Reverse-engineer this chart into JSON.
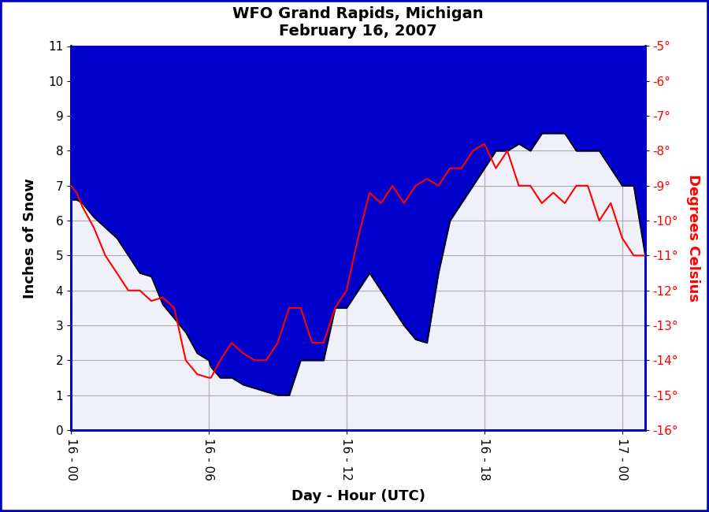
{
  "title_line1": "WFO Grand Rapids, Michigan",
  "title_line2": "February 16, 2007",
  "xlabel": "Day - Hour (UTC)",
  "ylabel_left": "Inches of Snow",
  "ylabel_right": "Degrees Celsius",
  "border_color": "#0000cc",
  "snow_fill_color": "#0000cc",
  "snow_line_color": "#000000",
  "temp_line_color": "#ff0000",
  "ylim_left": [
    0.0,
    11.0
  ],
  "ylim_right": [
    -16.0,
    -5.0
  ],
  "xlim": [
    0,
    25
  ],
  "xtick_positions": [
    0,
    6,
    12,
    18,
    24
  ],
  "xtick_labels": [
    "16 - 00",
    "16 - 06",
    "16 - 12",
    "16 - 18",
    "17 - 00"
  ],
  "ytick_left": [
    0.0,
    1.0,
    2.0,
    3.0,
    4.0,
    5.0,
    6.0,
    7.0,
    8.0,
    9.0,
    10.0,
    11.0
  ],
  "ytick_right": [
    -5,
    -6,
    -7,
    -8,
    -9,
    -10,
    -11,
    -12,
    -13,
    -14,
    -15,
    -16
  ],
  "snow_x": [
    0,
    0.25,
    0.5,
    1.0,
    1.5,
    2.0,
    2.5,
    3.0,
    3.5,
    4.0,
    4.5,
    5.0,
    5.5,
    6.0,
    6.1,
    6.5,
    7.0,
    7.5,
    8.0,
    8.5,
    9.0,
    9.5,
    10.0,
    10.5,
    11.0,
    11.5,
    12.0,
    12.5,
    13.0,
    13.5,
    14.0,
    14.5,
    15.0,
    15.5,
    16.0,
    16.5,
    17.0,
    17.5,
    18.0,
    18.5,
    19.0,
    19.5,
    20.0,
    20.5,
    21.0,
    21.5,
    22.0,
    22.5,
    23.0,
    23.5,
    24.0,
    24.5,
    25.0
  ],
  "snow_y": [
    6.6,
    6.6,
    6.5,
    6.1,
    5.8,
    5.5,
    5.0,
    4.5,
    4.4,
    3.6,
    3.2,
    2.8,
    2.2,
    2.0,
    1.8,
    1.5,
    1.5,
    1.3,
    1.2,
    1.1,
    1.0,
    1.0,
    2.0,
    2.0,
    2.0,
    3.5,
    3.5,
    4.0,
    4.5,
    4.0,
    3.5,
    3.0,
    2.6,
    2.5,
    4.5,
    6.0,
    6.5,
    7.0,
    7.5,
    8.0,
    8.0,
    8.2,
    8.0,
    8.5,
    8.5,
    8.5,
    8.0,
    8.0,
    8.0,
    7.5,
    7.0,
    7.0,
    5.0
  ],
  "temp_x": [
    0,
    0.25,
    0.5,
    1.0,
    1.5,
    2.0,
    2.5,
    3.0,
    3.5,
    4.0,
    4.5,
    5.0,
    5.5,
    6.0,
    6.1,
    6.5,
    7.0,
    7.5,
    8.0,
    8.5,
    9.0,
    9.5,
    10.0,
    10.5,
    11.0,
    11.5,
    12.0,
    12.5,
    13.0,
    13.5,
    14.0,
    14.5,
    15.0,
    15.5,
    16.0,
    16.5,
    17.0,
    17.5,
    18.0,
    18.5,
    19.0,
    19.5,
    20.0,
    20.5,
    21.0,
    21.5,
    22.0,
    22.5,
    23.0,
    23.5,
    24.0,
    24.5,
    25.0
  ],
  "temp_y": [
    -9.0,
    -9.2,
    -9.6,
    -10.2,
    -11.0,
    -11.5,
    -12.0,
    -12.0,
    -12.3,
    -12.2,
    -12.5,
    -14.0,
    -14.4,
    -14.5,
    -14.5,
    -14.0,
    -13.5,
    -13.8,
    -14.0,
    -14.0,
    -13.5,
    -12.5,
    -12.5,
    -13.5,
    -13.5,
    -12.5,
    -12.0,
    -10.5,
    -9.2,
    -9.5,
    -9.0,
    -9.5,
    -9.0,
    -8.8,
    -9.0,
    -8.5,
    -8.5,
    -8.0,
    -7.8,
    -8.5,
    -8.0,
    -9.0,
    -9.0,
    -9.5,
    -9.2,
    -9.5,
    -9.0,
    -9.0,
    -10.0,
    -9.5,
    -10.5,
    -11.0,
    -11.0
  ]
}
